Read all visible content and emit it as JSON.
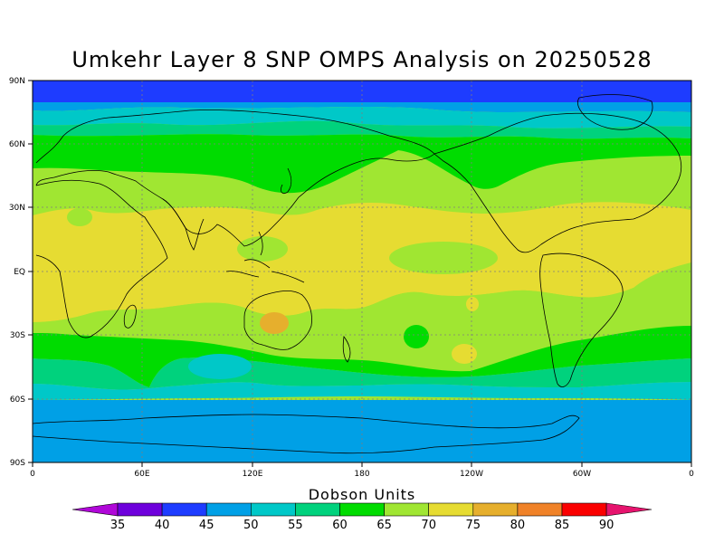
{
  "title": "Umkehr Layer 8 SNP OMPS Analysis on 20250528",
  "map": {
    "lat_labels": [
      "90N",
      "60N",
      "30N",
      "EQ",
      "30S",
      "60S",
      "90S"
    ],
    "lon_labels": [
      "0",
      "60E",
      "120E",
      "180",
      "120W",
      "60W",
      "0"
    ]
  },
  "colorbar": {
    "title": "Dobson Units",
    "labels": [
      "35",
      "40",
      "45",
      "50",
      "55",
      "60",
      "65",
      "70",
      "75",
      "80",
      "85",
      "90"
    ],
    "colors": [
      "#b007d8",
      "#6e00dc",
      "#1e3cff",
      "#00a0e6",
      "#00c8c8",
      "#00d27d",
      "#00dc00",
      "#a0e632",
      "#e6dc32",
      "#e6af2d",
      "#f08228",
      "#fa0000",
      "#e6146e"
    ]
  },
  "colors": {
    "coast": "#000000",
    "grid": "#7f7f7f"
  }
}
